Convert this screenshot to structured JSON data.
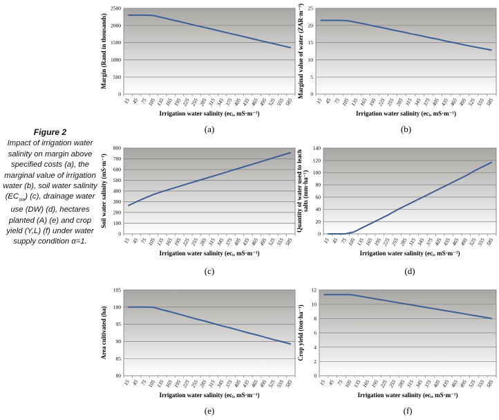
{
  "caption": {
    "title": "Figure 2",
    "body_part1": "Impact of irrigation water salinity on margin above specified costs (a), the marginal value of irrigation water (b), soil water salinity (EC",
    "body_sub": "sw",
    "body_part2": ") (c), drainage water use (DW) (d), hectares planted (A) (e) and crop yield (Y,L) (f) under water supply condition α=1."
  },
  "colors": {
    "line": "#3b5f96",
    "plot_gradient_top": "#a8a6a2",
    "plot_gradient_bottom": "#ffffff",
    "gridline": "#7d7d7d",
    "plot_border": "#8c8c8c",
    "text": "#000000"
  },
  "chart_data": [
    {
      "id": "a",
      "letter": "(a)",
      "type": "line",
      "grid": true,
      "legend": false,
      "ylabel": "Margin (Rand in thousands)",
      "ylabel_lines": [
        "Margin (Rand in thousands)"
      ],
      "xlabel": "Irrigation water salinity (ecᵢ, mS·m⁻¹)",
      "categories": [
        "15",
        "45",
        "75",
        "105",
        "135",
        "165",
        "195",
        "225",
        "255",
        "285",
        "315",
        "345",
        "375",
        "405",
        "435",
        "465",
        "495",
        "525",
        "555",
        "585"
      ],
      "values": [
        2300,
        2300,
        2300,
        2290,
        2230,
        2170,
        2115,
        2055,
        1995,
        1940,
        1880,
        1820,
        1760,
        1705,
        1645,
        1585,
        1525,
        1470,
        1410,
        1350
      ],
      "ylim": [
        0,
        2500
      ],
      "ytick_step": 500
    },
    {
      "id": "b",
      "letter": "(b)",
      "type": "line",
      "grid": true,
      "legend": false,
      "ylabel": "Marginal value of water (ZAR·m⁻³)",
      "ylabel_lines": [
        "Marginal value of water (ZAR·m⁻³)"
      ],
      "xlabel": "Irrigation water salinity (ecᵢ, mS·m⁻¹)",
      "categories": [
        "15",
        "45",
        "75",
        "105",
        "135",
        "165",
        "195",
        "225",
        "255",
        "285",
        "315",
        "345",
        "375",
        "405",
        "435",
        "465",
        "495",
        "525",
        "555",
        "585"
      ],
      "values": [
        21.5,
        21.5,
        21.5,
        21.4,
        20.9,
        20.4,
        19.8,
        19.3,
        18.7,
        18.2,
        17.6,
        17.1,
        16.5,
        16.0,
        15.4,
        14.9,
        14.3,
        13.8,
        13.3,
        12.8
      ],
      "ylim": [
        0,
        25
      ],
      "ytick_step": 5
    },
    {
      "id": "c",
      "letter": "(c)",
      "type": "line",
      "grid": true,
      "legend": false,
      "ylabel": "Soil water salinity (mS·m⁻¹)",
      "ylabel_lines": [
        "Soil water salinity (mS·m⁻¹)"
      ],
      "xlabel": "Irrigation water salinity (ecᵢ, mS·m⁻¹)",
      "categories": [
        "15",
        "45",
        "75",
        "105",
        "135",
        "165",
        "195",
        "225",
        "255",
        "285",
        "315",
        "345",
        "375",
        "405",
        "435",
        "465",
        "495",
        "525",
        "555",
        "585"
      ],
      "values": [
        263,
        300,
        335,
        368,
        395,
        419,
        443,
        468,
        492,
        516,
        540,
        564,
        589,
        613,
        637,
        661,
        685,
        710,
        734,
        758
      ],
      "ylim": [
        0,
        800
      ],
      "ytick_step": 100
    },
    {
      "id": "d",
      "letter": "(d)",
      "type": "line",
      "grid": true,
      "legend": false,
      "ylabel": "Quantity of water used to leach salts (mm·ha⁻¹)",
      "ylabel_lines": [
        "Quantity of water used to leach",
        "salts (mm·ha⁻¹)"
      ],
      "xlabel": "Irrigation water salinity (ecᵢ, mS·m⁻¹)",
      "categories": [
        "15",
        "45",
        "75",
        "105",
        "135",
        "165",
        "195",
        "225",
        "255",
        "285",
        "315",
        "345",
        "375",
        "405",
        "435",
        "465",
        "495",
        "525",
        "555",
        "585"
      ],
      "values": [
        0,
        0,
        0,
        3,
        10,
        17,
        24,
        31,
        39,
        46,
        53,
        60,
        67,
        74,
        81,
        88,
        95,
        103,
        110,
        117
      ],
      "ylim": [
        0,
        140
      ],
      "ytick_step": 20
    },
    {
      "id": "e",
      "letter": "(e)",
      "type": "line",
      "grid": true,
      "legend": false,
      "ylabel": "Area cultivated (ha)",
      "ylabel_lines": [
        "Area cultivated (ha)"
      ],
      "xlabel": "Irrigation water salinity (ecᵢ, mS·m⁻¹)",
      "categories": [
        "15",
        "45",
        "75",
        "105",
        "135",
        "165",
        "195",
        "225",
        "255",
        "285",
        "315",
        "345",
        "375",
        "405",
        "435",
        "465",
        "495",
        "525",
        "555",
        "585"
      ],
      "values": [
        100,
        100,
        100,
        99.9,
        99.2,
        98.6,
        97.9,
        97.2,
        96.5,
        95.9,
        95.2,
        94.5,
        93.9,
        93.2,
        92.5,
        91.9,
        91.2,
        90.5,
        89.9,
        89.2
      ],
      "ylim": [
        80,
        105
      ],
      "ytick_step": 5
    },
    {
      "id": "f",
      "letter": "(f)",
      "type": "line",
      "grid": true,
      "legend": false,
      "ylabel": "Crop yield (ton·ha⁻¹)",
      "ylabel_lines": [
        "Crop yield (ton·ha⁻¹)"
      ],
      "xlabel": "Irrigation water salinity (ecᵢ, mS·m⁻¹)",
      "categories": [
        "15",
        "45",
        "75",
        "105",
        "135",
        "165",
        "195",
        "225",
        "255",
        "285",
        "315",
        "345",
        "375",
        "405",
        "435",
        "465",
        "495",
        "525",
        "555",
        "585"
      ],
      "values": [
        11.35,
        11.35,
        11.35,
        11.35,
        11.14,
        10.93,
        10.72,
        10.51,
        10.3,
        10.09,
        9.88,
        9.67,
        9.46,
        9.26,
        9.05,
        8.84,
        8.63,
        8.42,
        8.21,
        8.0
      ],
      "ylim": [
        0,
        12
      ],
      "ytick_step": 2
    }
  ]
}
